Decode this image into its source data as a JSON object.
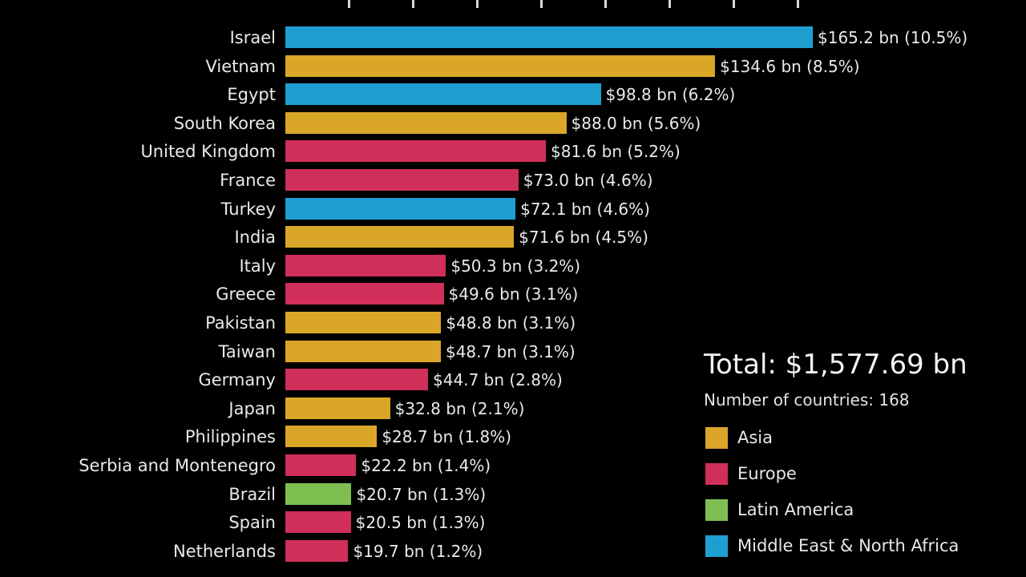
{
  "chart_data": {
    "type": "bar",
    "orientation": "horizontal",
    "categories": [
      "Israel",
      "Vietnam",
      "Egypt",
      "South Korea",
      "United Kingdom",
      "France",
      "Turkey",
      "India",
      "Italy",
      "Greece",
      "Pakistan",
      "Taiwan",
      "Germany",
      "Japan",
      "Philippines",
      "Serbia and Montenegro",
      "Brazil",
      "Spain",
      "Netherlands"
    ],
    "values": [
      165.2,
      134.6,
      98.8,
      88.0,
      81.6,
      73.0,
      72.1,
      71.6,
      50.3,
      49.6,
      48.8,
      48.7,
      44.7,
      32.8,
      28.7,
      22.2,
      20.7,
      20.5,
      19.7
    ],
    "value_labels": [
      "$165.2 bn (10.5%)",
      "$134.6 bn (8.5%)",
      "$98.8 bn (6.2%)",
      "$88.0 bn (5.6%)",
      "$81.6 bn (5.2%)",
      "$73.0 bn (4.6%)",
      "$72.1 bn (4.6%)",
      "$71.6 bn (4.5%)",
      "$50.3 bn (3.2%)",
      "$49.6 bn (3.1%)",
      "$48.8 bn (3.1%)",
      "$48.7 bn (3.1%)",
      "$44.7 bn (2.8%)",
      "$32.8 bn (2.1%)",
      "$28.7 bn (1.8%)",
      "$22.2 bn (1.4%)",
      "$20.7 bn (1.3%)",
      "$20.5 bn (1.3%)",
      "$19.7 bn (1.2%)"
    ],
    "regions": [
      "Middle East & North Africa",
      "Asia",
      "Middle East & North Africa",
      "Asia",
      "Europe",
      "Europe",
      "Middle East & North Africa",
      "Asia",
      "Europe",
      "Europe",
      "Asia",
      "Asia",
      "Europe",
      "Asia",
      "Asia",
      "Europe",
      "Latin America",
      "Europe",
      "Europe"
    ],
    "xlim": [
      0,
      180
    ],
    "grid": false,
    "legend": {
      "placement": "bottom-right",
      "entries": [
        {
          "name": "Asia",
          "color": "#d9a628"
        },
        {
          "name": "Europe",
          "color": "#cf2f59"
        },
        {
          "name": "Latin America",
          "color": "#7fbf52"
        },
        {
          "name": "Middle East & North Africa",
          "color": "#1f9fd1"
        }
      ]
    },
    "annotations": {
      "total": "Total: $1,577.69 bn",
      "country_count": "Number of countries: 168"
    }
  }
}
